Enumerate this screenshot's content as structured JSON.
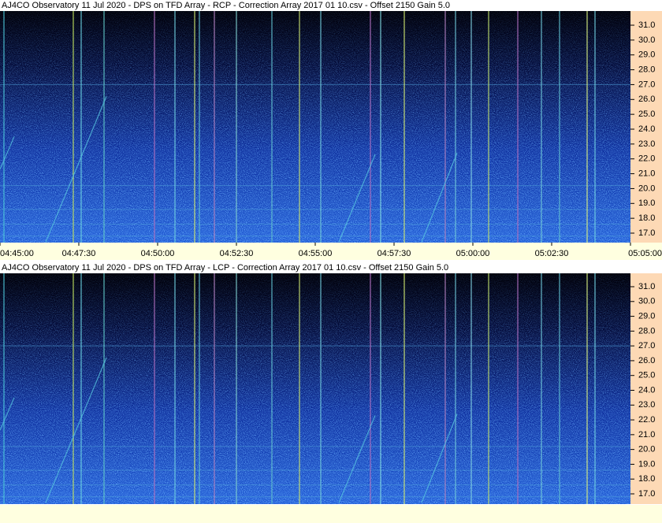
{
  "panels": [
    {
      "title": "AJ4CO Observatory 11 Jul 2020  -  DPS on TFD Array  -  RCP  -  Correction Array 2017 01 10.csv  -  Offset 2150  Gain 5.0",
      "yticks": [
        "31.0",
        "30.0",
        "29.0",
        "28.0",
        "27.0",
        "26.0",
        "25.0",
        "24.0",
        "23.0",
        "22.0",
        "21.0",
        "20.0",
        "19.0",
        "18.0",
        "17.0"
      ],
      "xticks": [
        "04:45:00",
        "04:47:30",
        "04:50:00",
        "04:52:30",
        "04:55:00",
        "04:57:30",
        "05:00:00",
        "05:02:30",
        "05:05:00"
      ]
    },
    {
      "title": "AJ4CO Observatory 11 Jul 2020  -  DPS on TFD Array  -  LCP  -  Correction Array 2017 01 10.csv  -  Offset 2150  Gain 5.0",
      "yticks": [
        "31.0",
        "30.0",
        "29.0",
        "28.0",
        "27.0",
        "26.0",
        "25.0",
        "24.0",
        "23.0",
        "22.0",
        "21.0",
        "20.0",
        "19.0",
        "18.0",
        "17.0"
      ]
    }
  ]
}
